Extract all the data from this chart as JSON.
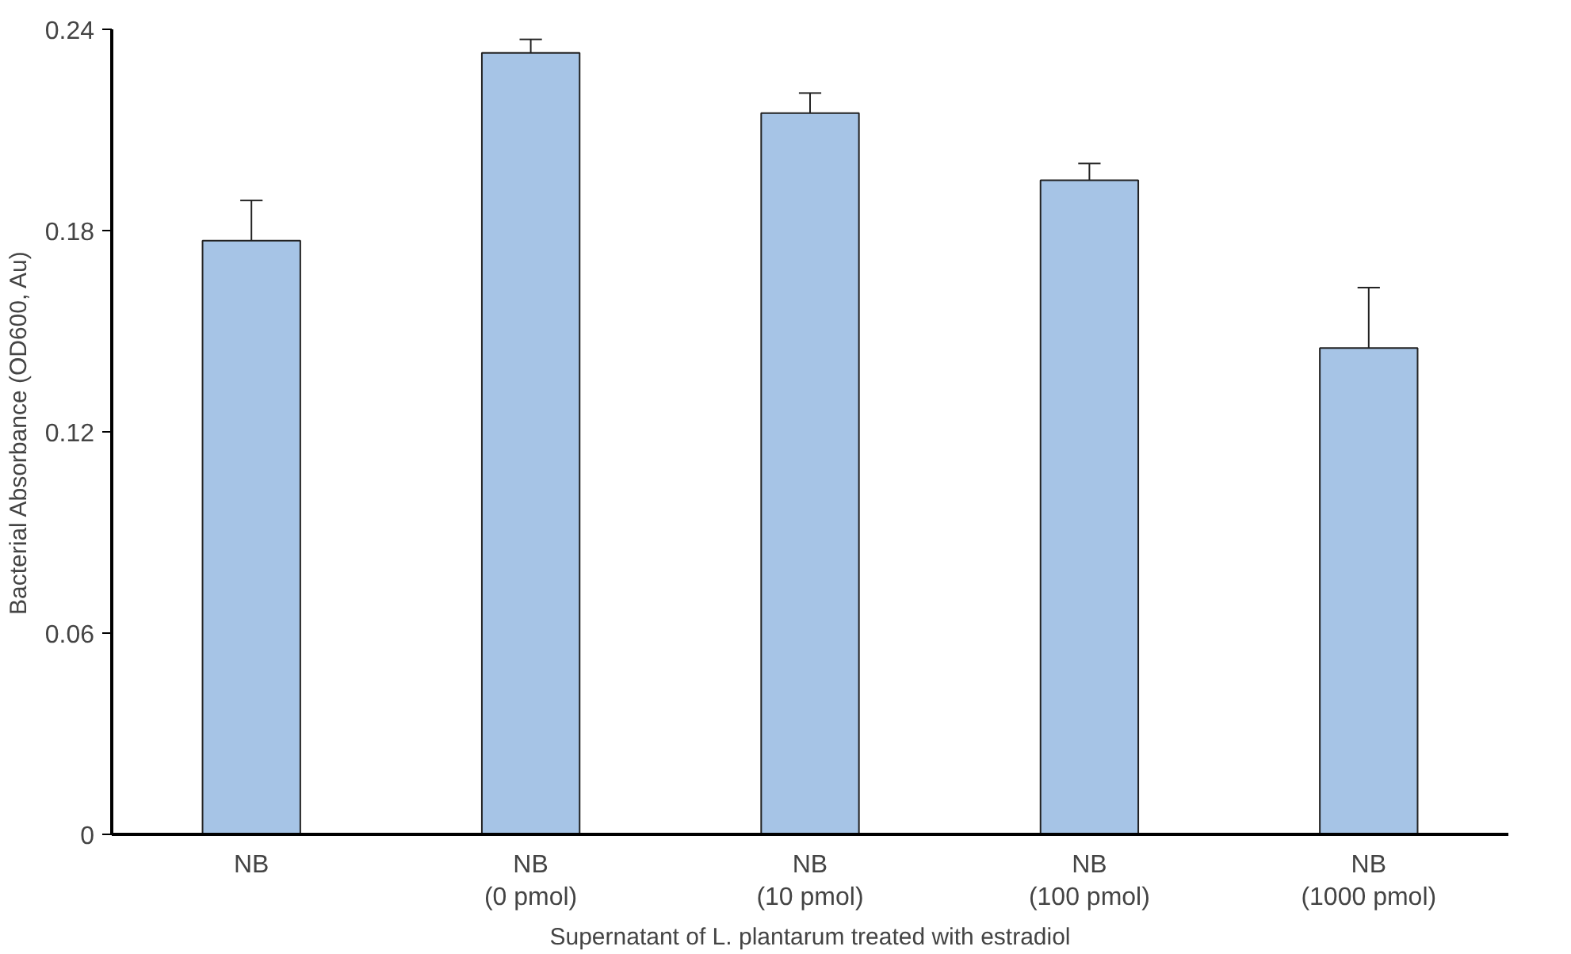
{
  "chart_data": {
    "type": "bar",
    "xlabel": "Supernatant of L. plantarum treated with estradiol",
    "ylabel": "Bacterial Absorbance (OD600, Au)",
    "categories": [
      "NB",
      "NB\n(0 pmol)",
      "NB\n(10 pmol)",
      "NB\n(100 pmol)",
      "NB\n(1000 pmol)"
    ],
    "values": [
      0.177,
      0.233,
      0.215,
      0.195,
      0.145
    ],
    "errors": [
      [
        0.177,
        0.189
      ],
      [
        0.233,
        0.237
      ],
      [
        0.215,
        0.221
      ],
      [
        0.195,
        0.2
      ],
      [
        0.145,
        0.163
      ]
    ],
    "color": "#a6c4e6",
    "ylim": [
      0,
      0.24
    ],
    "yticks": [
      "0",
      0.06,
      0.12,
      0.18,
      0.24
    ],
    "grid": false
  }
}
